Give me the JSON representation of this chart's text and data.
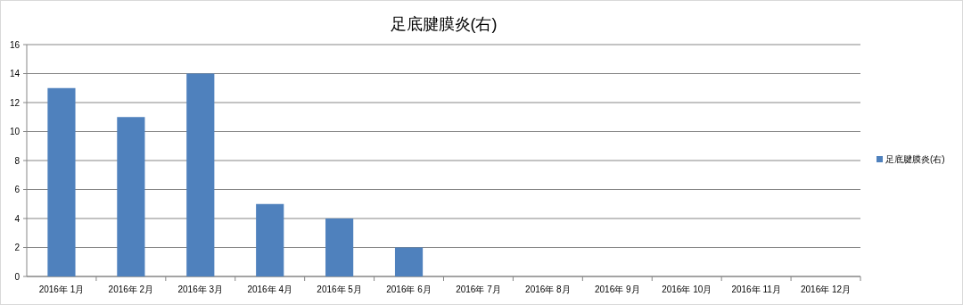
{
  "chart_data": {
    "type": "bar",
    "title": "足底腱膜炎(右)",
    "categories": [
      "2016年 1月",
      "2016年 2月",
      "2016年 3月",
      "2016年 4月",
      "2016年 5月",
      "2016年 6月",
      "2016年 7月",
      "2016年 8月",
      "2016年 9月",
      "2016年 10月",
      "2016年 11月",
      "2016年 12月"
    ],
    "series": [
      {
        "name": "足底腱膜炎(右)",
        "color": "#4f81bd",
        "values": [
          13,
          11,
          14,
          5,
          4,
          2,
          0,
          0,
          0,
          0,
          0,
          0
        ]
      }
    ],
    "ylim": [
      0,
      16
    ],
    "yticks": [
      0,
      2,
      4,
      6,
      8,
      10,
      12,
      14,
      16
    ],
    "grid": "y",
    "legend": "right"
  }
}
